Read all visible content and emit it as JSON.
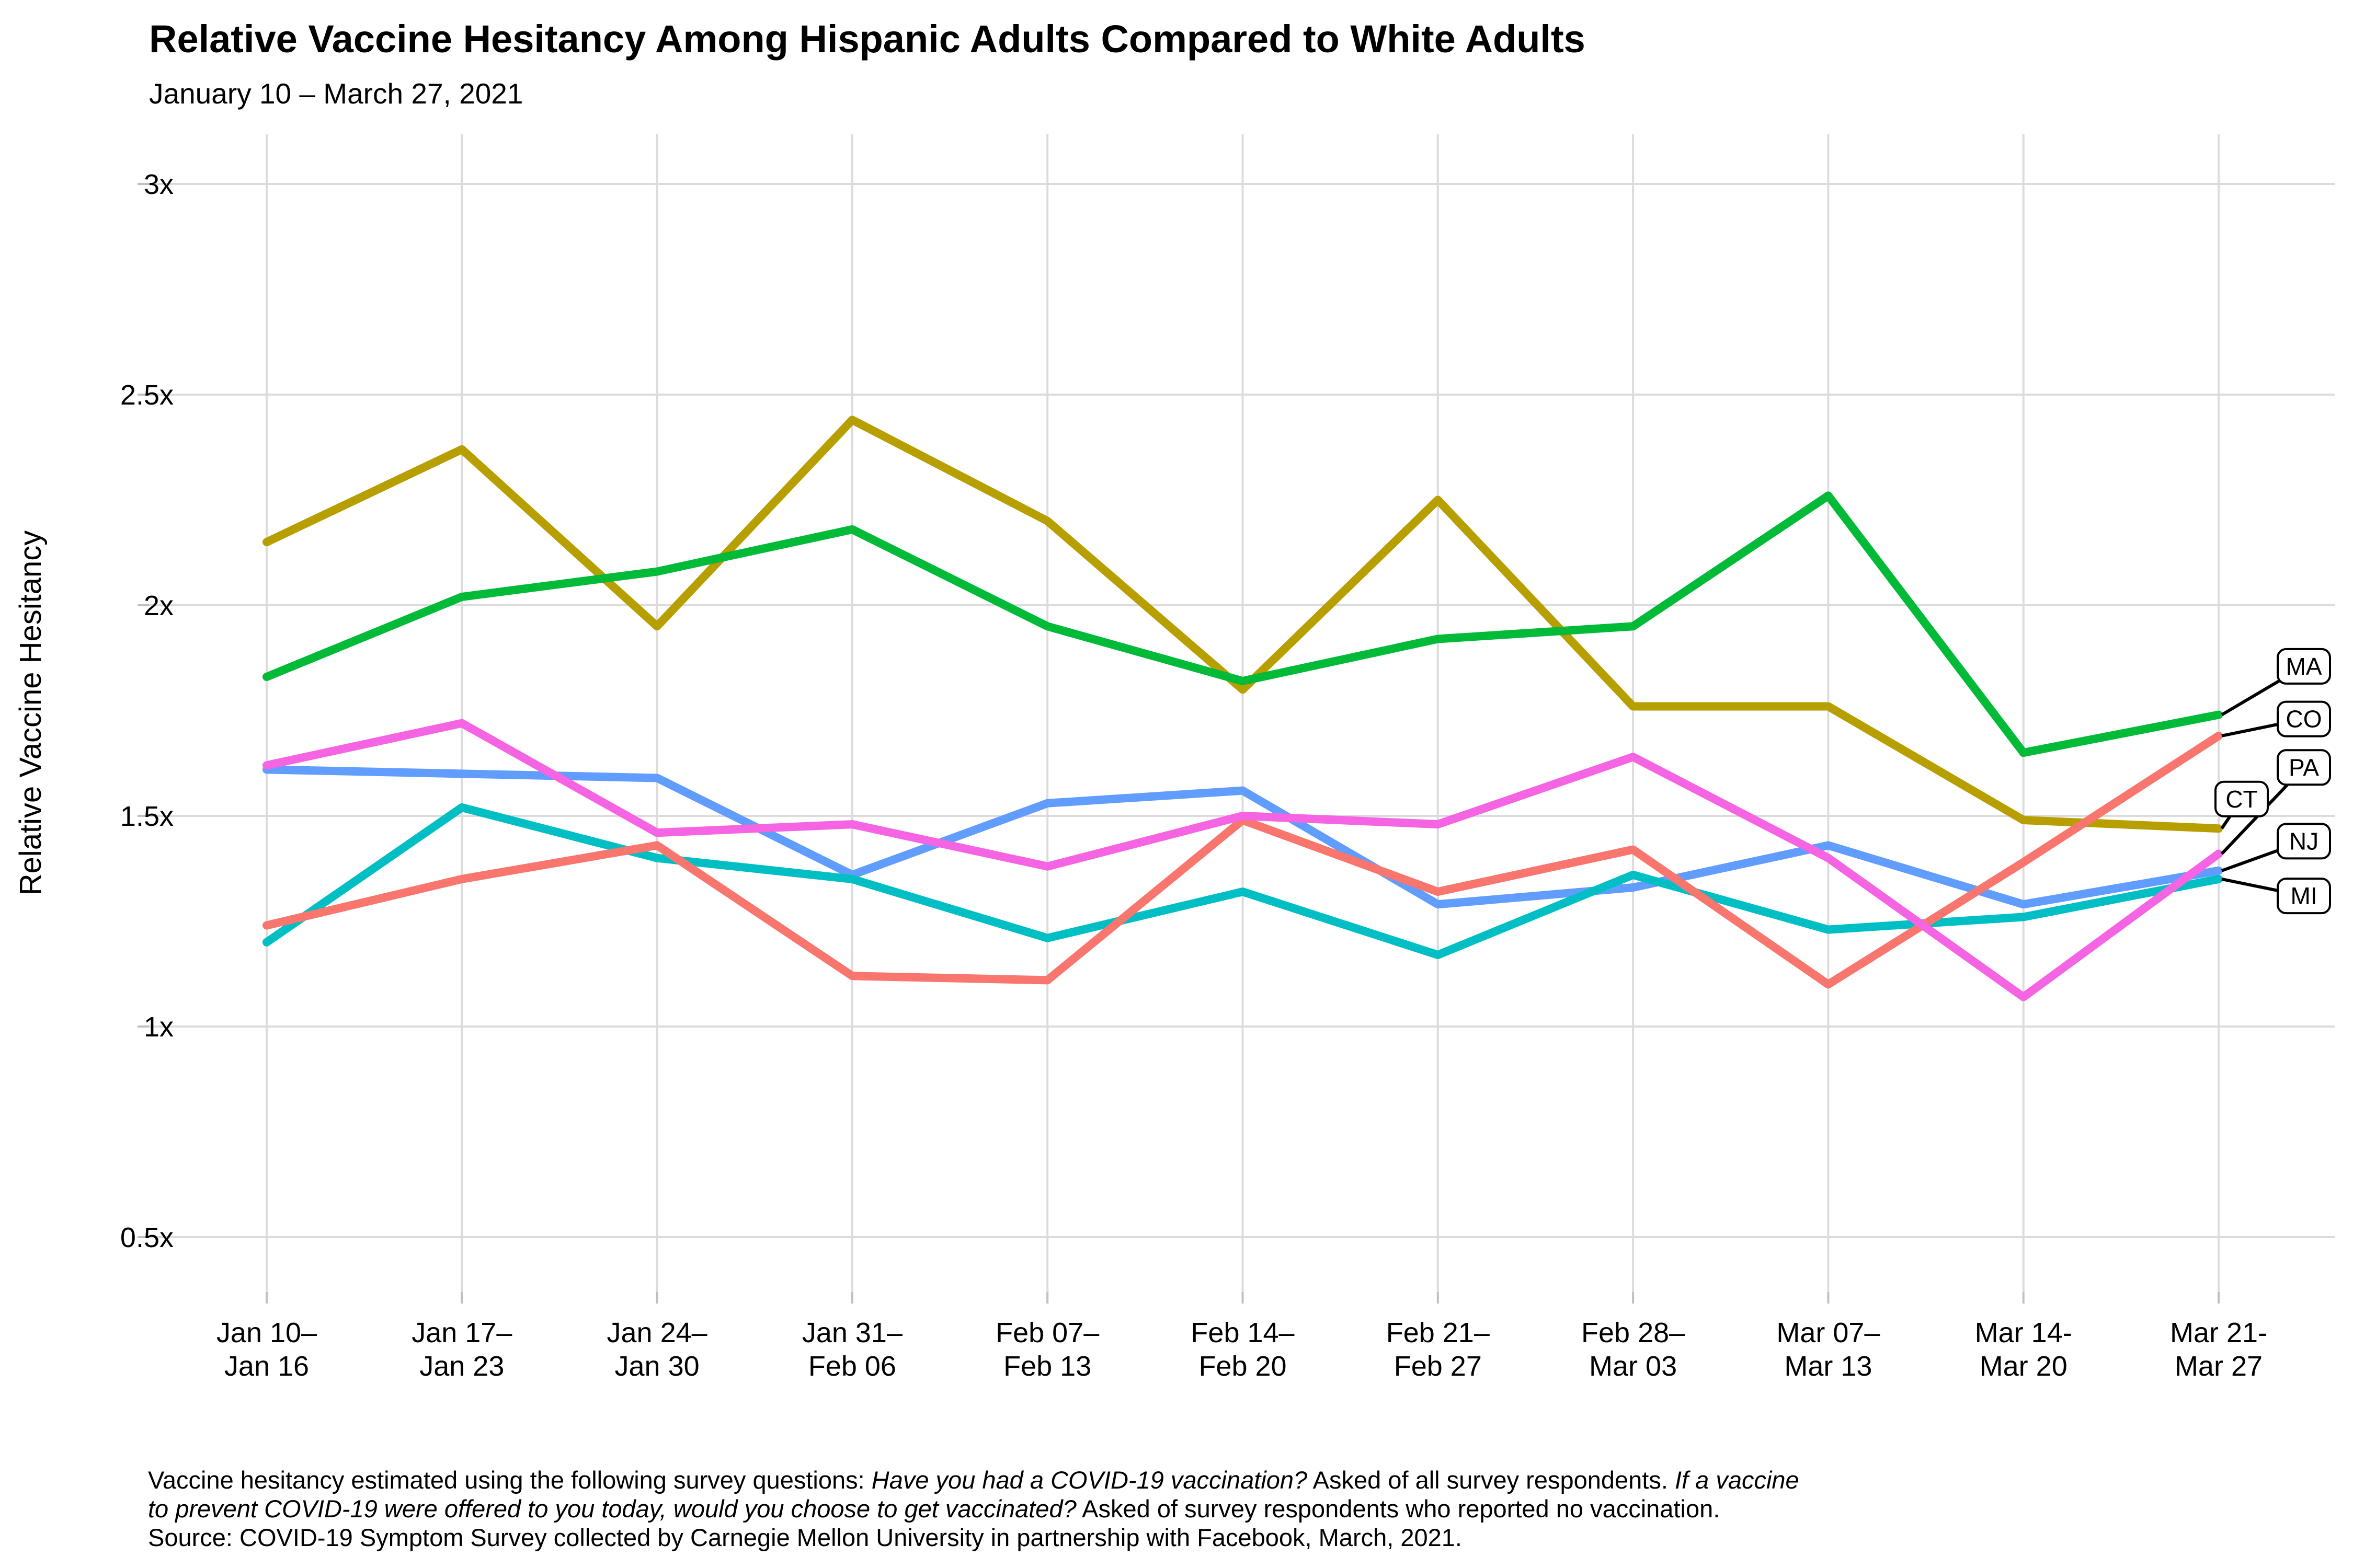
{
  "chart_data": {
    "type": "line",
    "title": "Relative Vaccine Hesitancy Among Hispanic Adults Compared to White Adults",
    "subtitle": "January 10 – March 27, 2021",
    "ylabel": "Relative Vaccine Hesitancy",
    "grid": true,
    "legend_position": "right-end-labels",
    "ylim": [
      0.35,
      3.15
    ],
    "y_ticks": [
      {
        "label": "3x",
        "value": 3.0
      },
      {
        "label": "2.5x",
        "value": 2.5
      },
      {
        "label": "2x",
        "value": 2.0
      },
      {
        "label": "1.5x",
        "value": 1.5
      },
      {
        "label": "1x",
        "value": 1.0
      },
      {
        "label": "0.5x",
        "value": 0.5
      }
    ],
    "categories": [
      [
        "Jan 10–",
        "Jan 16"
      ],
      [
        "Jan 17–",
        "Jan 23"
      ],
      [
        "Jan 24–",
        "Jan 30"
      ],
      [
        "Jan 31–",
        "Feb 06"
      ],
      [
        "Feb 07–",
        "Feb 13"
      ],
      [
        "Feb 14–",
        "Feb 20"
      ],
      [
        "Feb 21–",
        "Feb 27"
      ],
      [
        "Feb 28–",
        "Mar 03"
      ],
      [
        "Mar 07–",
        "Mar 13"
      ],
      [
        "Mar 14-",
        "Mar 20"
      ],
      [
        "Mar 21-",
        "Mar 27"
      ]
    ],
    "series": [
      {
        "name": "CT",
        "color": "#B79F00",
        "label_value": 1.54,
        "label_inset": true,
        "values": [
          2.15,
          2.37,
          1.95,
          2.44,
          2.2,
          1.8,
          2.25,
          1.76,
          1.76,
          1.49,
          1.47
        ]
      },
      {
        "name": "MA",
        "color": "#00BA38",
        "label_value": 1.855,
        "label_inset": false,
        "values": [
          1.83,
          2.02,
          2.08,
          2.18,
          1.95,
          1.82,
          1.92,
          1.95,
          2.26,
          1.65,
          1.74
        ]
      },
      {
        "name": "NJ",
        "color": "#619CFF",
        "label_value": 1.44,
        "label_inset": false,
        "values": [
          1.61,
          1.6,
          1.59,
          1.36,
          1.53,
          1.56,
          1.29,
          1.33,
          1.43,
          1.29,
          1.37
        ]
      },
      {
        "name": "MI",
        "color": "#00BFC4",
        "label_value": 1.31,
        "label_inset": false,
        "values": [
          1.2,
          1.52,
          1.4,
          1.35,
          1.21,
          1.32,
          1.17,
          1.36,
          1.23,
          1.26,
          1.35
        ]
      },
      {
        "name": "CO",
        "color": "#F8766D",
        "label_value": 1.73,
        "label_inset": false,
        "values": [
          1.24,
          1.35,
          1.43,
          1.12,
          1.11,
          1.49,
          1.32,
          1.42,
          1.1,
          1.39,
          1.69
        ]
      },
      {
        "name": "PA",
        "color": "#F564E3",
        "label_value": 1.615,
        "label_inset": false,
        "values": [
          1.62,
          1.72,
          1.46,
          1.48,
          1.38,
          1.5,
          1.48,
          1.64,
          1.4,
          1.07,
          1.41
        ]
      }
    ],
    "footnote_lines": [
      [
        {
          "text": "Vaccine hesitancy estimated using the following survey questions: ",
          "italic": false
        },
        {
          "text": "Have you had a COVID-19 vaccination?",
          "italic": true
        },
        {
          "text": " Asked of all survey respondents. ",
          "italic": false
        },
        {
          "text": "If a vaccine",
          "italic": true
        }
      ],
      [
        {
          "text": "to prevent COVID-19 were offered to you today, would you choose to get vaccinated?",
          "italic": true
        },
        {
          "text": " Asked of survey respondents who reported no vaccination.",
          "italic": false
        }
      ],
      [
        {
          "text": "Source: COVID-19 Symptom Survey collected by Carnegie Mellon University in partnership with Facebook, March, 2021.",
          "italic": false
        }
      ]
    ],
    "style": {
      "grid_color": "#DCDCDC",
      "tick_color": "#C0C0C0",
      "line_width": 16,
      "label_box_border": "#000000",
      "label_box_fill": "#FFFFFF"
    }
  }
}
